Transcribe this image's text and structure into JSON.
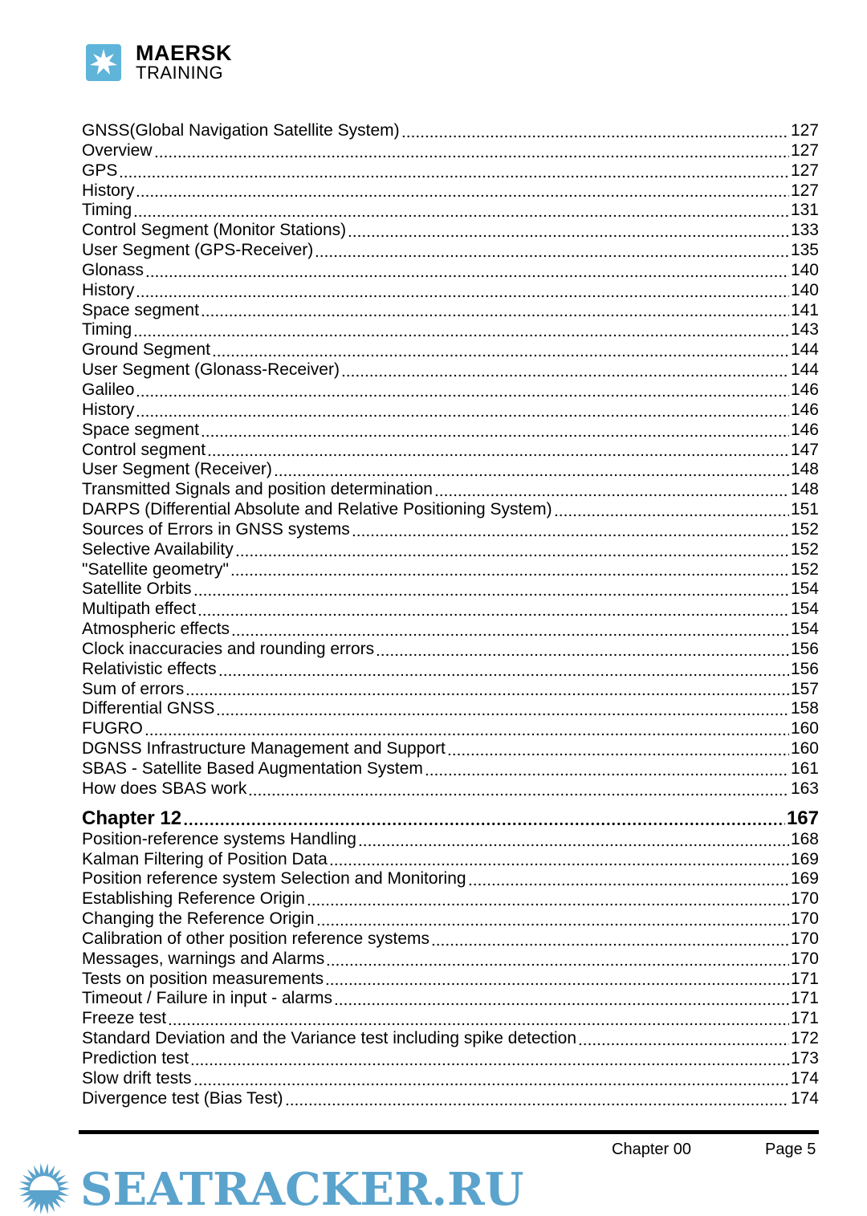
{
  "logo": {
    "brand": "MAERSK",
    "sub": "TRAINING",
    "color": "#5fb4d9"
  },
  "toc": [
    {
      "title": "GNSS(Global Navigation Satellite System)",
      "page": "127"
    },
    {
      "title": "Overview",
      "page": "127"
    },
    {
      "title": "GPS",
      "page": "127"
    },
    {
      "title": "History",
      "page": "127"
    },
    {
      "title": "Timing",
      "page": "131"
    },
    {
      "title": "Control Segment (Monitor Stations)",
      "page": "133"
    },
    {
      "title": "User Segment (GPS-Receiver)",
      "page": "135"
    },
    {
      "title": "Glonass",
      "page": "140"
    },
    {
      "title": "History",
      "page": "140"
    },
    {
      "title": "Space segment",
      "page": "141"
    },
    {
      "title": "Timing",
      "page": "143"
    },
    {
      "title": "Ground Segment",
      "page": "144"
    },
    {
      "title": "User Segment (Glonass-Receiver)",
      "page": "144"
    },
    {
      "title": "Galileo",
      "page": "146"
    },
    {
      "title": "History",
      "page": "146"
    },
    {
      "title": "Space segment",
      "page": "146"
    },
    {
      "title": "Control segment",
      "page": "147"
    },
    {
      "title": "User Segment (Receiver)",
      "page": "148"
    },
    {
      "title": "Transmitted Signals and position determination",
      "page": "148"
    },
    {
      "title": "DARPS (Differential Absolute and Relative Positioning System)",
      "page": "151"
    },
    {
      "title": "Sources of Errors in GNSS systems",
      "page": "152"
    },
    {
      "title": "Selective Availability",
      "page": "152"
    },
    {
      "title": "\"Satellite geometry\"",
      "page": "152"
    },
    {
      "title": "Satellite Orbits",
      "page": "154"
    },
    {
      "title": "Multipath effect",
      "page": "154"
    },
    {
      "title": "Atmospheric effects",
      "page": "154"
    },
    {
      "title": "Clock inaccuracies and rounding errors",
      "page": "156"
    },
    {
      "title": "Relativistic effects",
      "page": "156"
    },
    {
      "title": "Sum of errors",
      "page": "157"
    },
    {
      "title": "Differential GNSS",
      "page": "158"
    },
    {
      "title": "FUGRO",
      "page": "160"
    },
    {
      "title": "DGNSS Infrastructure Management and Support",
      "page": "160"
    },
    {
      "title": "SBAS - Satellite Based Augmentation System",
      "page": "161"
    },
    {
      "title": "How does SBAS work",
      "page": "163"
    },
    {
      "title": "Chapter 12",
      "page": "167",
      "chapter": true
    },
    {
      "title": "Position-reference systems Handling",
      "page": "168"
    },
    {
      "title": "Kalman Filtering of Position Data",
      "page": "169"
    },
    {
      "title": "Position reference system Selection and Monitoring",
      "page": "169"
    },
    {
      "title": "Establishing Reference Origin",
      "page": "170"
    },
    {
      "title": "Changing the Reference Origin",
      "page": "170"
    },
    {
      "title": "Calibration of other position reference systems",
      "page": "170"
    },
    {
      "title": "Messages, warnings and Alarms",
      "page": "170"
    },
    {
      "title": "Tests on position measurements",
      "page": "171"
    },
    {
      "title": "Timeout / Failure in input - alarms",
      "page": "171"
    },
    {
      "title": "Freeze test",
      "page": "171"
    },
    {
      "title": "Standard Deviation and the Variance test including spike detection",
      "page": "172"
    },
    {
      "title": "Prediction test",
      "page": "173"
    },
    {
      "title": "Slow drift tests",
      "page": "174"
    },
    {
      "title": "Divergence test (Bias Test)",
      "page": "174"
    }
  ],
  "footer": {
    "chapter": "Chapter 00",
    "page": "Page 5"
  },
  "watermark": {
    "text": "SEATRACKER.RU",
    "color": "#5aa3cc"
  }
}
